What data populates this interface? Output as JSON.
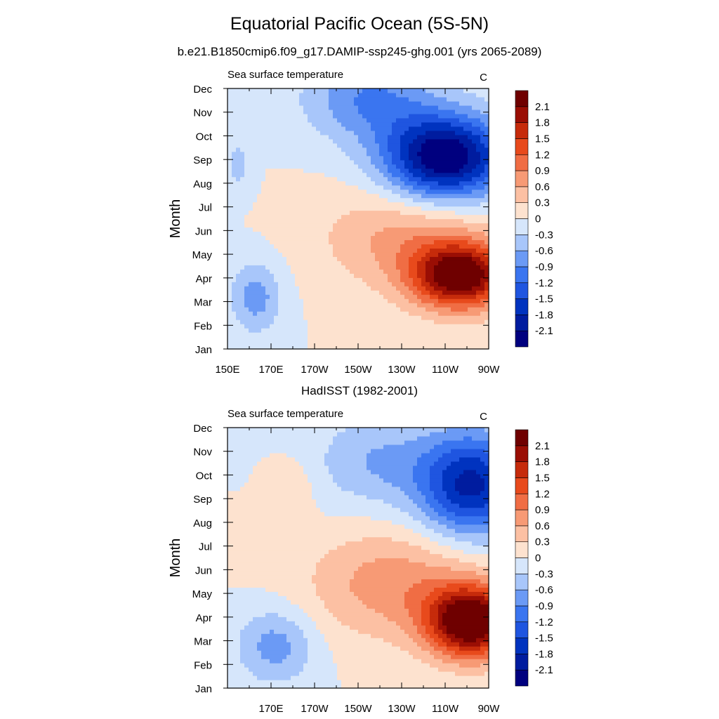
{
  "title": "Equatorial Pacific Ocean (5S-5N)",
  "chart_data": [
    {
      "type": "heatmap",
      "panel_title": "b.e21.B1850cmip6.f09_g17.DAMIP-ssp245-ghg.001 (yrs 2065-2089)",
      "left_label": "Sea surface temperature",
      "units": "C",
      "ylabel": "Month",
      "xlabel": "",
      "xlim": [
        150,
        270
      ],
      "ylim": [
        0,
        11
      ],
      "x_tick_labels": [
        "150E",
        "170E",
        "170W",
        "150W",
        "130W",
        "110W",
        "90W"
      ],
      "x_tick_values": [
        150,
        170,
        190,
        210,
        230,
        250,
        270
      ],
      "y_tick_labels": [
        "Jan",
        "Feb",
        "Mar",
        "Apr",
        "May",
        "Jun",
        "Jul",
        "Aug",
        "Sep",
        "Oct",
        "Nov",
        "Dec"
      ],
      "contour_levels": [
        -2.1,
        -1.8,
        -1.5,
        -1.2,
        -0.9,
        -0.6,
        -0.3,
        0,
        0.3,
        0.6,
        0.9,
        1.2,
        1.5,
        1.8,
        2.1
      ],
      "anomaly_features": [
        {
          "lon": 257,
          "month": 3.1,
          "amplitude": 2.4,
          "lon_width": 22,
          "month_width": 1.4
        },
        {
          "lon": 232,
          "month": 4.7,
          "amplitude": 0.7,
          "lon_width": 38,
          "month_width": 2.2
        },
        {
          "lon": 250,
          "month": 8.1,
          "amplitude": -2.5,
          "lon_width": 28,
          "month_width": 1.8
        },
        {
          "lon": 215,
          "month": 10.6,
          "amplitude": -0.9,
          "lon_width": 30,
          "month_width": 1.8
        },
        {
          "lon": 163,
          "month": 2.2,
          "amplitude": -0.75,
          "lon_width": 12,
          "month_width": 1.5
        },
        {
          "lon": 155,
          "month": 7.8,
          "amplitude": -0.4,
          "lon_width": 6,
          "month_width": 1.2
        }
      ]
    },
    {
      "type": "heatmap",
      "panel_title": "HadISST (1982-2001)",
      "left_label": "Sea surface temperature",
      "units": "C",
      "ylabel": "Month",
      "xlabel": "",
      "xlim": [
        150,
        270
      ],
      "ylim": [
        0,
        11
      ],
      "x_tick_labels": [
        "170E",
        "170W",
        "150W",
        "130W",
        "110W",
        "90W"
      ],
      "x_tick_values": [
        170,
        190,
        210,
        230,
        250,
        270
      ],
      "y_tick_labels": [
        "Jan",
        "Feb",
        "Mar",
        "Apr",
        "May",
        "Jun",
        "Jul",
        "Aug",
        "Sep",
        "Oct",
        "Nov",
        "Dec"
      ],
      "contour_levels": [
        -2.1,
        -1.8,
        -1.5,
        -1.2,
        -0.9,
        -0.6,
        -0.3,
        0,
        0.3,
        0.6,
        0.9,
        1.2,
        1.5,
        1.8,
        2.1
      ],
      "anomaly_features": [
        {
          "lon": 262,
          "month": 2.8,
          "amplitude": 2.6,
          "lon_width": 20,
          "month_width": 1.5
        },
        {
          "lon": 228,
          "month": 4.4,
          "amplitude": 0.8,
          "lon_width": 40,
          "month_width": 2.3
        },
        {
          "lon": 262,
          "month": 8.6,
          "amplitude": -1.9,
          "lon_width": 24,
          "month_width": 2.2
        },
        {
          "lon": 218,
          "month": 9.6,
          "amplitude": -0.6,
          "lon_width": 28,
          "month_width": 2.0
        },
        {
          "lon": 172,
          "month": 1.8,
          "amplitude": -0.75,
          "lon_width": 18,
          "month_width": 1.6
        },
        {
          "lon": 179,
          "month": 8.4,
          "amplitude": 0.3,
          "lon_width": 10,
          "month_width": 1.2
        }
      ]
    }
  ],
  "colors": {
    "levels": [
      "#00007f",
      "#001c9f",
      "#0033bf",
      "#1f55e0",
      "#3a75f0",
      "#6b9af5",
      "#a8c6fa",
      "#d6e6fb",
      "#fde2cf",
      "#fcc0a3",
      "#f79a75",
      "#f06d44",
      "#e84a1c",
      "#c62b0b",
      "#9a0e04",
      "#6f0000"
    ]
  }
}
